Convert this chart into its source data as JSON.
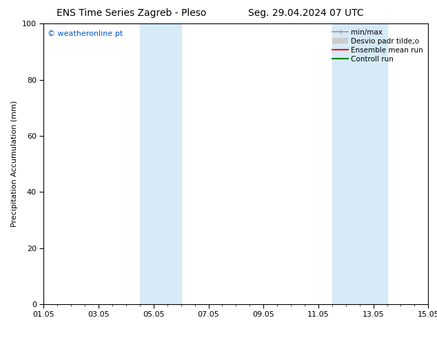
{
  "title_left": "ENS Time Series Zagreb - Pleso",
  "title_right": "Seg. 29.04.2024 07 UTC",
  "ylabel": "Precipitation Accumulation (mm)",
  "watermark": "© weatheronline.pt",
  "watermark_color": "#0055cc",
  "xlim_start": 0,
  "xlim_end": 14,
  "ylim_min": 0,
  "ylim_max": 100,
  "xtick_positions": [
    0,
    2,
    4,
    6,
    8,
    10,
    12,
    14
  ],
  "xtick_labels": [
    "01.05",
    "03.05",
    "05.05",
    "07.05",
    "09.05",
    "11.05",
    "13.05",
    "15.05"
  ],
  "xtick_minor_positions": [
    0.5,
    1.0,
    1.5,
    2.0,
    2.5,
    3.0,
    3.5,
    4.0,
    4.5,
    5.0,
    5.5,
    6.0,
    6.5,
    7.0,
    7.5,
    8.0,
    8.5,
    9.0,
    9.5,
    10.0,
    10.5,
    11.0,
    11.5,
    12.0,
    12.5,
    13.0,
    13.5
  ],
  "ytick_positions": [
    0,
    20,
    40,
    60,
    80,
    100
  ],
  "shaded_bands": [
    {
      "x_start": 3.5,
      "x_end": 5.0
    },
    {
      "x_start": 10.5,
      "x_end": 12.5
    }
  ],
  "shade_color": "#d6eaf8",
  "shade_alpha": 1.0,
  "legend_entries": [
    {
      "label": "min/max",
      "color": "#999999",
      "lw": 1.2
    },
    {
      "label": "Desvio padr tilde;o",
      "color": "#cccccc",
      "lw": 6
    },
    {
      "label": "Ensemble mean run",
      "color": "#ff0000",
      "lw": 1.5
    },
    {
      "label": "Controll run",
      "color": "#008000",
      "lw": 1.5
    }
  ],
  "background_color": "#ffffff",
  "plot_bg_color": "#ffffff",
  "title_fontsize": 10,
  "tick_fontsize": 8,
  "ylabel_fontsize": 8,
  "watermark_fontsize": 8
}
